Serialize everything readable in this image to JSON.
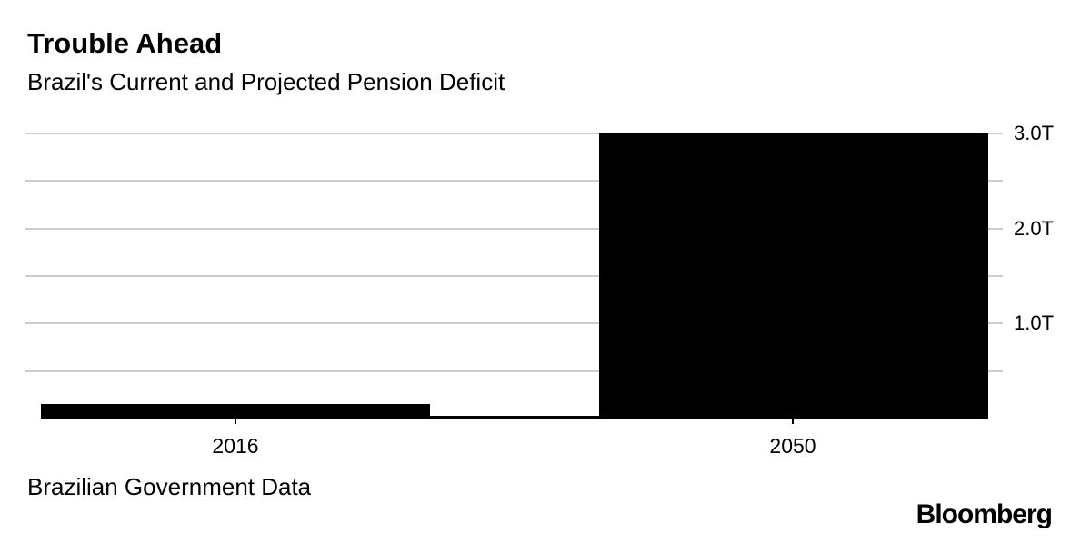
{
  "header": {
    "title": "Trouble Ahead",
    "subtitle": "Brazil's Current and Projected Pension Deficit"
  },
  "footer": {
    "source": "Brazilian Government Data",
    "brand": "Bloomberg"
  },
  "colors": {
    "bar": "#000000",
    "grid": "#cccccc",
    "axis": "#000000",
    "text": "#000000",
    "background": "#ffffff"
  },
  "chart_data": {
    "type": "bar",
    "title": "Trouble Ahead",
    "subtitle": "Brazil's Current and Projected Pension Deficit",
    "source": "Brazilian Government Data",
    "categories": [
      "2016",
      "2050"
    ],
    "values": [
      0.15,
      3.0
    ],
    "unit": "T",
    "xlabel": "",
    "ylabel": "",
    "ylim": [
      0,
      3.0
    ],
    "ytick_step": 0.5,
    "yticks_labeled": [
      {
        "value": 3.0,
        "label": "3.0T"
      },
      {
        "value": 2.0,
        "label": "2.0T"
      },
      {
        "value": 1.0,
        "label": "1.0T"
      }
    ],
    "grid": true,
    "axis_side": "right",
    "legend": false
  }
}
